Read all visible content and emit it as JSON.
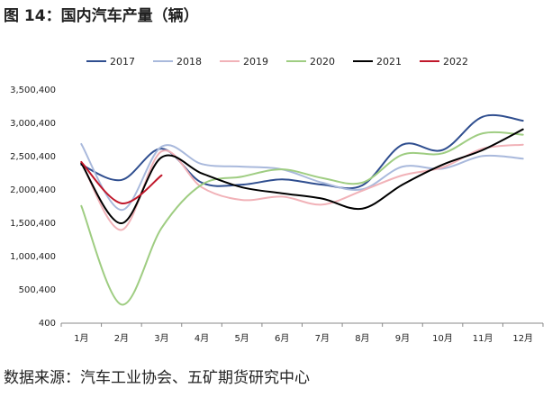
{
  "chart_data": {
    "type": "line",
    "title": "图 14：国内汽车产量（辆）",
    "source": "数据来源：汽车工业协会、五矿期货研究中心",
    "categories": [
      "1月",
      "2月",
      "3月",
      "4月",
      "5月",
      "6月",
      "7月",
      "8月",
      "9月",
      "10月",
      "11月",
      "12月"
    ],
    "series": [
      {
        "name": "2017",
        "color": "#2f4e8f",
        "values": [
          2380000,
          2150000,
          2620000,
          2110000,
          2080000,
          2160000,
          2080000,
          2070000,
          2680000,
          2600000,
          3100000,
          3040000
        ]
      },
      {
        "name": "2018",
        "color": "#a9b9dc",
        "values": [
          2690000,
          1700000,
          2650000,
          2390000,
          2350000,
          2310000,
          2110000,
          2010000,
          2350000,
          2320000,
          2510000,
          2470000
        ]
      },
      {
        "name": "2019",
        "color": "#f1b2b8",
        "values": [
          2420000,
          1400000,
          2580000,
          2040000,
          1850000,
          1900000,
          1780000,
          1990000,
          2220000,
          2340000,
          2620000,
          2680000
        ]
      },
      {
        "name": "2020",
        "color": "#9fcd82",
        "values": [
          1760000,
          280000,
          1430000,
          2080000,
          2200000,
          2310000,
          2180000,
          2110000,
          2530000,
          2550000,
          2850000,
          2830000
        ]
      },
      {
        "name": "2021",
        "color": "#000000",
        "values": [
          2400000,
          1500000,
          2490000,
          2250000,
          2040000,
          1950000,
          1870000,
          1720000,
          2080000,
          2380000,
          2600000,
          2910000
        ]
      },
      {
        "name": "2022",
        "color": "#c0182b",
        "values": [
          2420000,
          1800000,
          2220000,
          null,
          null,
          null,
          null,
          null,
          null,
          null,
          null,
          null
        ]
      }
    ],
    "ylim": [
      400,
      3500400
    ],
    "yticks": [
      400,
      {
        "value": 500400,
        "label": "500,400"
      },
      {
        "value": 1000400,
        "label": "1,000,400"
      },
      {
        "value": 1500400,
        "label": "1,500,400"
      },
      {
        "value": 2000400,
        "label": "2,000,400"
      },
      {
        "value": 2500400,
        "label": "2,500,400"
      },
      {
        "value": 3000400,
        "label": "3,000,400"
      },
      {
        "value": 3500400,
        "label": "3,500,400"
      }
    ],
    "legend": "top",
    "grid": false
  }
}
